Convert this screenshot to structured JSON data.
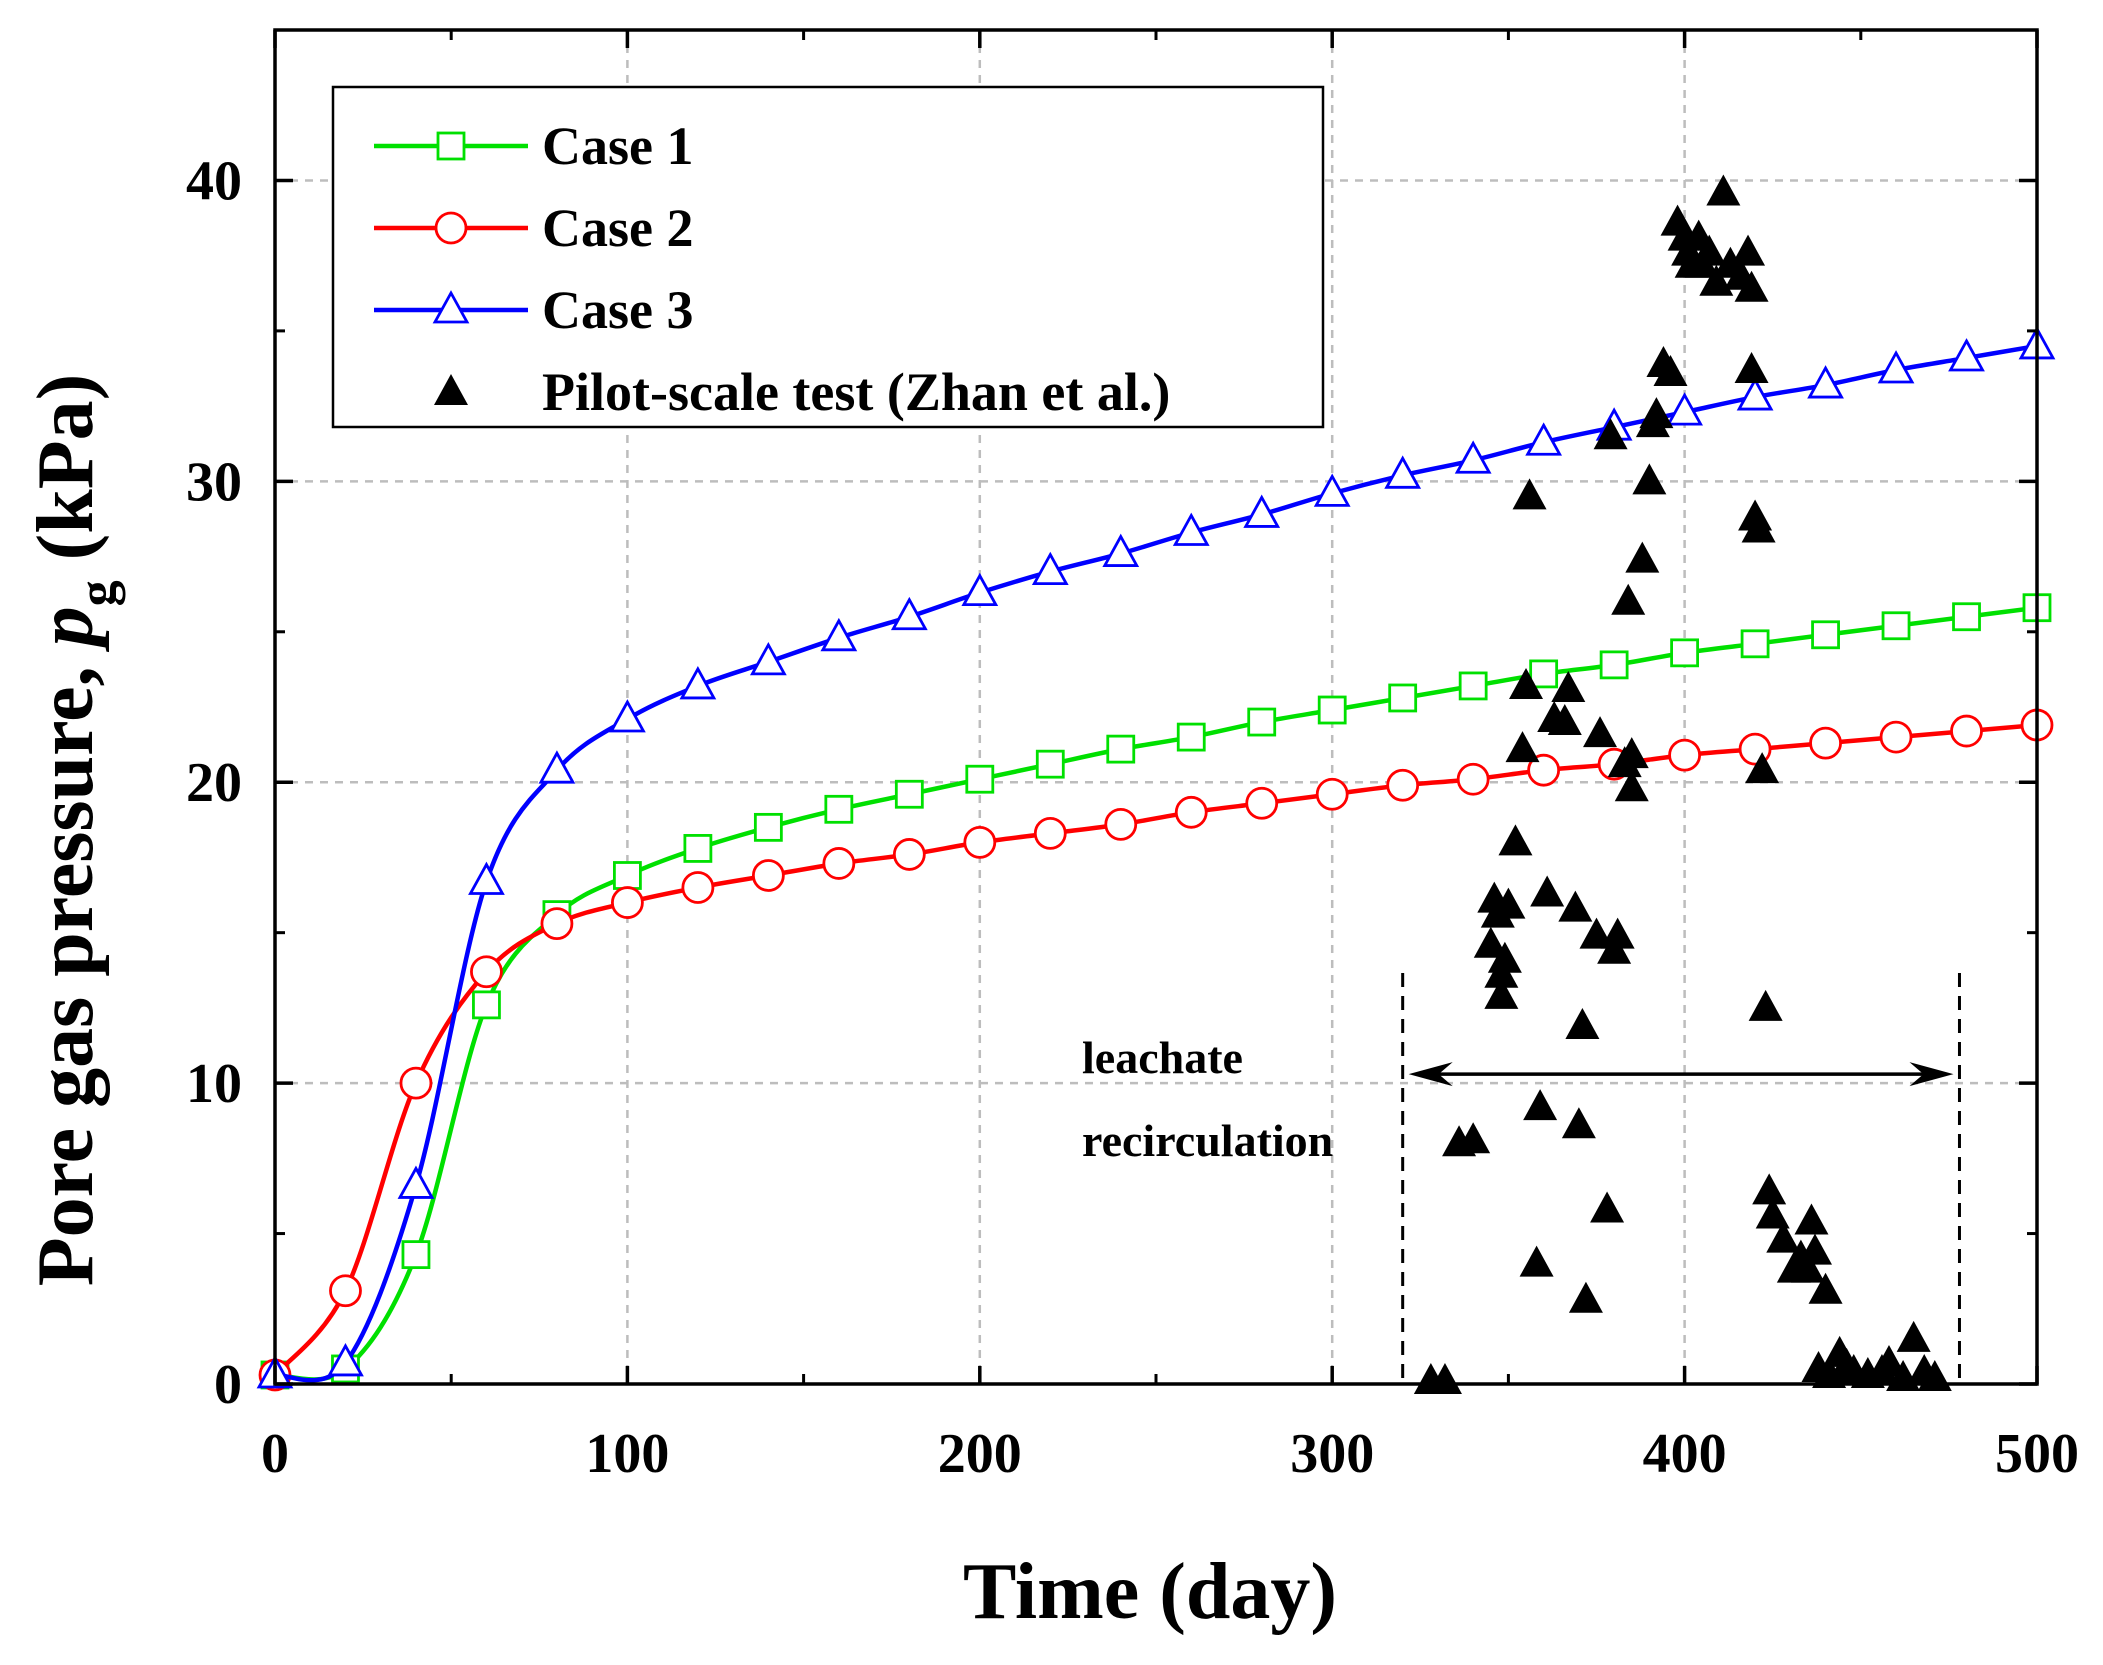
{
  "chart_data": {
    "type": "line",
    "title": "",
    "xlabel": "Time (day)",
    "ylabel_prefix": "Pore gas pressure, ",
    "ylabel_symbol": "p",
    "ylabel_subscript": "g",
    "ylabel_unit": " (kPa)",
    "xlim": [
      0,
      500
    ],
    "ylim": [
      0,
      45
    ],
    "xticks": [
      0,
      100,
      200,
      300,
      400,
      500
    ],
    "yticks": [
      0,
      10,
      20,
      30,
      40
    ],
    "grid": true,
    "legend_position": "top-left",
    "series": [
      {
        "name": "Case 1",
        "color": "#00e000",
        "marker": "square",
        "x": [
          0,
          20,
          40,
          60,
          80,
          100,
          120,
          140,
          160,
          180,
          200,
          220,
          240,
          260,
          280,
          300,
          320,
          340,
          360,
          380,
          400,
          420,
          440,
          460,
          480,
          500
        ],
        "y": [
          0.3,
          0.5,
          4.3,
          12.6,
          15.6,
          16.9,
          17.8,
          18.5,
          19.1,
          19.6,
          20.1,
          20.6,
          21.1,
          21.5,
          22.0,
          22.4,
          22.8,
          23.2,
          23.6,
          23.9,
          24.3,
          24.6,
          24.9,
          25.2,
          25.5,
          25.8
        ]
      },
      {
        "name": "Case 2",
        "color": "#ff0000",
        "marker": "circle",
        "x": [
          0,
          20,
          40,
          60,
          80,
          100,
          120,
          140,
          160,
          180,
          200,
          220,
          240,
          260,
          280,
          300,
          320,
          340,
          360,
          380,
          400,
          420,
          440,
          460,
          480,
          500
        ],
        "y": [
          0.3,
          3.1,
          10.0,
          13.7,
          15.3,
          16.0,
          16.5,
          16.9,
          17.3,
          17.6,
          18.0,
          18.3,
          18.6,
          19.0,
          19.3,
          19.6,
          19.9,
          20.1,
          20.4,
          20.6,
          20.9,
          21.1,
          21.3,
          21.5,
          21.7,
          21.9
        ]
      },
      {
        "name": "Case 3",
        "color": "#0000ff",
        "marker": "triangle-open",
        "x": [
          0,
          20,
          40,
          60,
          80,
          100,
          120,
          140,
          160,
          180,
          200,
          220,
          240,
          260,
          280,
          300,
          320,
          340,
          360,
          380,
          400,
          420,
          440,
          460,
          480,
          500
        ],
        "y": [
          0.3,
          0.7,
          6.6,
          16.7,
          20.4,
          22.1,
          23.2,
          24.0,
          24.8,
          25.5,
          26.3,
          27.0,
          27.6,
          28.3,
          28.9,
          29.6,
          30.2,
          30.7,
          31.3,
          31.8,
          32.3,
          32.8,
          33.2,
          33.7,
          34.1,
          34.5
        ]
      },
      {
        "name": "Pilot-scale test (Zhan et al.)",
        "color": "#000000",
        "marker": "triangle-filled",
        "points": [
          [
            328,
            0.1
          ],
          [
            332,
            0.1
          ],
          [
            336,
            8.0
          ],
          [
            340,
            8.1
          ],
          [
            345,
            14.6
          ],
          [
            346,
            16.1
          ],
          [
            347,
            15.6
          ],
          [
            348,
            13.6
          ],
          [
            348,
            12.9
          ],
          [
            349,
            14.1
          ],
          [
            350,
            15.9
          ],
          [
            352,
            18.0
          ],
          [
            354,
            21.1
          ],
          [
            355,
            23.2
          ],
          [
            356,
            29.5
          ],
          [
            358,
            4.0
          ],
          [
            359,
            9.2
          ],
          [
            361,
            16.3
          ],
          [
            363,
            22.1
          ],
          [
            366,
            22.0
          ],
          [
            367,
            23.1
          ],
          [
            369,
            15.8
          ],
          [
            370,
            8.6
          ],
          [
            371,
            11.9
          ],
          [
            372,
            2.8
          ],
          [
            375,
            14.9
          ],
          [
            376,
            21.6
          ],
          [
            378,
            5.8
          ],
          [
            379,
            31.5
          ],
          [
            380,
            14.4
          ],
          [
            381,
            14.9
          ],
          [
            383,
            20.6
          ],
          [
            384,
            26.0
          ],
          [
            385,
            20.9
          ],
          [
            385,
            19.8
          ],
          [
            388,
            27.4
          ],
          [
            390,
            30.0
          ],
          [
            391,
            31.9
          ],
          [
            392,
            32.2
          ],
          [
            394,
            33.9
          ],
          [
            396,
            33.6
          ],
          [
            398,
            38.6
          ],
          [
            400,
            38.1
          ],
          [
            401,
            37.6
          ],
          [
            402,
            37.2
          ],
          [
            404,
            38.1
          ],
          [
            405,
            37.2
          ],
          [
            407,
            37.6
          ],
          [
            409,
            36.6
          ],
          [
            411,
            39.6
          ],
          [
            413,
            37.2
          ],
          [
            416,
            36.8
          ],
          [
            418,
            37.6
          ],
          [
            419,
            36.4
          ],
          [
            419,
            33.7
          ],
          [
            420,
            28.8
          ],
          [
            421,
            28.4
          ],
          [
            422,
            20.4
          ],
          [
            423,
            12.5
          ],
          [
            424,
            6.4
          ],
          [
            425,
            5.6
          ],
          [
            428,
            4.8
          ],
          [
            431,
            3.8
          ],
          [
            433,
            4.2
          ],
          [
            435,
            3.8
          ],
          [
            436,
            5.4
          ],
          [
            437,
            4.4
          ],
          [
            440,
            3.1
          ],
          [
            438,
            0.5
          ],
          [
            441,
            0.3
          ],
          [
            444,
            1.0
          ],
          [
            446,
            0.6
          ],
          [
            448,
            0.4
          ],
          [
            452,
            0.3
          ],
          [
            456,
            0.4
          ],
          [
            458,
            0.7
          ],
          [
            462,
            0.2
          ],
          [
            465,
            1.5
          ],
          [
            468,
            0.4
          ],
          [
            471,
            0.2
          ]
        ]
      }
    ],
    "annotation": {
      "label_line1": "leachate",
      "label_line2": "recirculation",
      "x_start": 320,
      "x_end": 478,
      "arrow_y": 10.3
    }
  }
}
